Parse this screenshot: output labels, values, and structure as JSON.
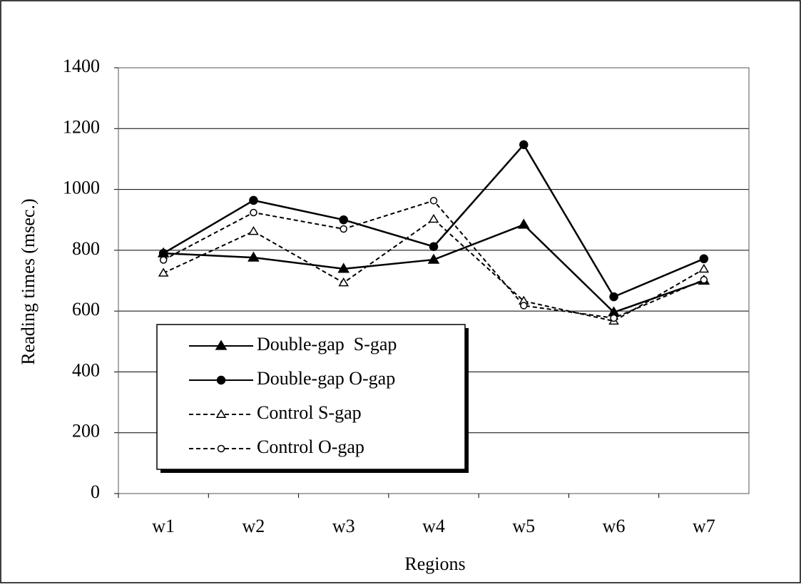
{
  "chart_data": {
    "type": "line",
    "x_label": "Regions",
    "y_label": "Reading times (msec.)",
    "categories": [
      "w1",
      "w2",
      "w3",
      "w4",
      "w5",
      "w6",
      "w7"
    ],
    "series": [
      {
        "name": "Double-gap  S-gap",
        "color": "#000000",
        "dash": false,
        "marker": "triangle-filled",
        "values": [
          790,
          776,
          739,
          769,
          884,
          596,
          700
        ]
      },
      {
        "name": "Double-gap O-gap",
        "color": "#000000",
        "dash": false,
        "marker": "circle-filled",
        "values": [
          790,
          964,
          900,
          812,
          1147,
          647,
          772
        ]
      },
      {
        "name": "Control S-gap",
        "color": "#000000",
        "dash": true,
        "marker": "triangle-open",
        "values": [
          725,
          862,
          693,
          902,
          633,
          567,
          738
        ]
      },
      {
        "name": "Control O-gap",
        "color": "#000000",
        "dash": true,
        "marker": "circle-open",
        "values": [
          768,
          924,
          870,
          963,
          618,
          577,
          703
        ]
      }
    ],
    "ylim": [
      0,
      1400
    ],
    "yticks": [
      0,
      200,
      400,
      600,
      800,
      1000,
      1200,
      1400
    ],
    "grid": true,
    "legend": "lower left"
  }
}
